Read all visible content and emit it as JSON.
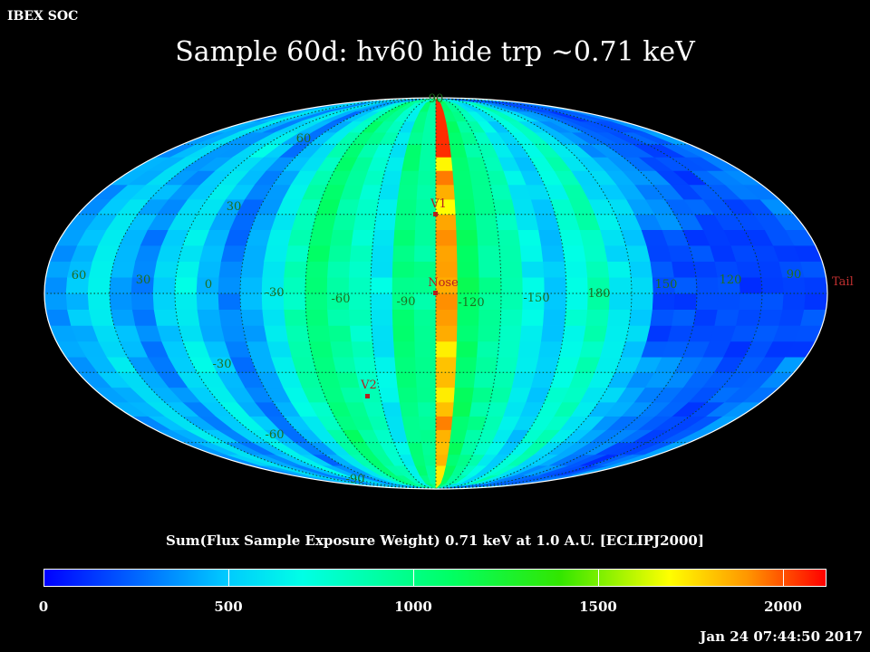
{
  "header": {
    "corner_label": "IBEX SOC",
    "title": "Sample 60d: hv60 hide trp ~0.71 keV"
  },
  "map": {
    "projection": "aitoff",
    "lat_labels_north": [
      "30",
      "60",
      "90"
    ],
    "lat_labels_south": [
      "-30",
      "-60",
      "-90"
    ],
    "lon_labels": [
      "60",
      "30",
      "0",
      "-30",
      "-60",
      "-90",
      "-120",
      "-150",
      "180",
      "150",
      "120",
      "90"
    ],
    "markers": [
      {
        "name": "V1",
        "color": "#b42020"
      },
      {
        "name": "Nose",
        "color": "#b42020"
      },
      {
        "name": "V2",
        "color": "#b42020"
      },
      {
        "name": "Tail",
        "color": "#c03030"
      }
    ],
    "colors": {
      "grid": "#1a3a1a",
      "label": "#2a7a2a"
    }
  },
  "colorbar": {
    "title": "Sum(Flux Sample Exposure Weight)  0.71 keV at 1.0 A.U. [ECLIPJ2000]",
    "ticks": [
      "0",
      "500",
      "1000",
      "1500",
      "2000"
    ],
    "range": [
      0,
      2120
    ]
  },
  "footer": {
    "timestamp": "Jan 24 07:44:50 2017"
  }
}
